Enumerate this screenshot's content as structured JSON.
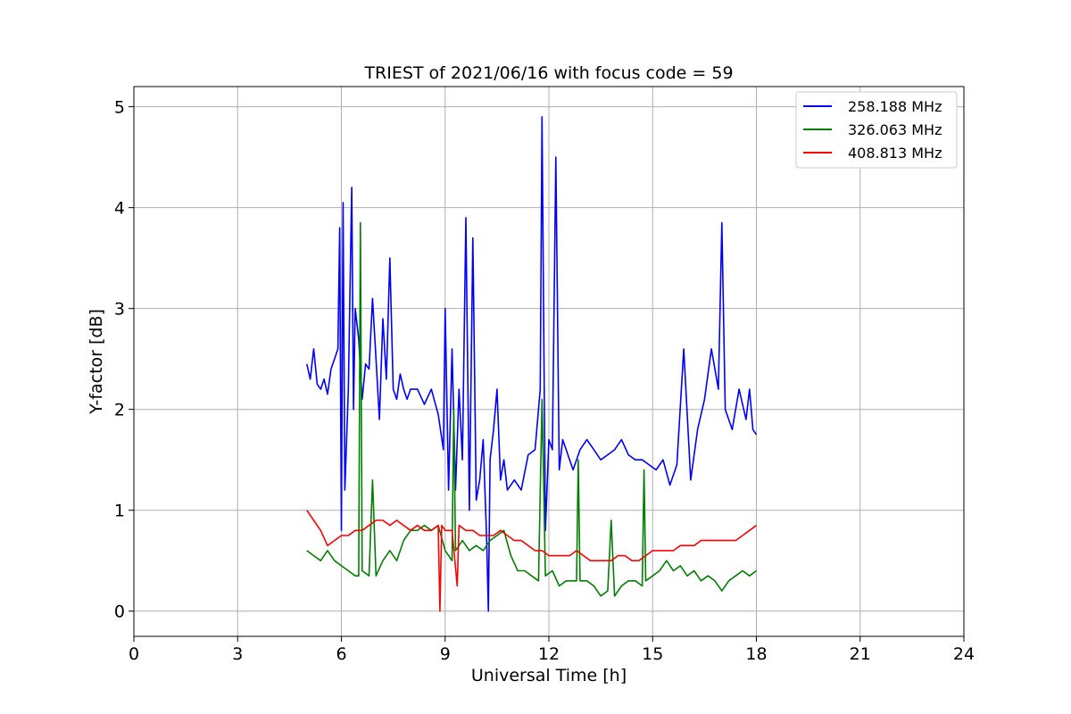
{
  "chart_data": {
    "type": "line",
    "title": "TRIEST of 2021/06/16 with focus code = 59",
    "xlabel": "Universal Time [h]",
    "ylabel": "Y-factor [dB]",
    "xlim": [
      0,
      24
    ],
    "ylim": [
      -0.25,
      5.2
    ],
    "xticks": [
      0,
      3,
      6,
      9,
      12,
      15,
      18,
      21,
      24
    ],
    "yticks": [
      0,
      1,
      2,
      3,
      4,
      5
    ],
    "grid": true,
    "legend_position": "top-right",
    "series": [
      {
        "name": "258.188 MHz",
        "color": "#0000ff",
        "x": [
          5.0,
          5.1,
          5.2,
          5.3,
          5.4,
          5.5,
          5.6,
          5.7,
          5.8,
          5.9,
          5.95,
          6.0,
          6.05,
          6.1,
          6.2,
          6.3,
          6.35,
          6.4,
          6.5,
          6.6,
          6.7,
          6.8,
          6.9,
          7.0,
          7.1,
          7.2,
          7.3,
          7.4,
          7.5,
          7.6,
          7.7,
          7.8,
          7.9,
          8.0,
          8.2,
          8.4,
          8.6,
          8.8,
          8.95,
          9.0,
          9.1,
          9.2,
          9.3,
          9.4,
          9.5,
          9.6,
          9.7,
          9.8,
          9.9,
          10.0,
          10.1,
          10.2,
          10.25,
          10.3,
          10.4,
          10.5,
          10.6,
          10.7,
          10.8,
          11.0,
          11.2,
          11.4,
          11.6,
          11.75,
          11.8,
          11.9,
          12.0,
          12.1,
          12.2,
          12.3,
          12.4,
          12.5,
          12.7,
          12.9,
          13.1,
          13.3,
          13.5,
          13.7,
          13.9,
          14.1,
          14.3,
          14.5,
          14.7,
          14.9,
          15.1,
          15.3,
          15.5,
          15.7,
          15.9,
          16.1,
          16.3,
          16.5,
          16.7,
          16.9,
          17.0,
          17.1,
          17.3,
          17.5,
          17.7,
          17.8,
          17.9,
          18.0
        ],
        "values": [
          2.45,
          2.3,
          2.6,
          2.25,
          2.2,
          2.3,
          2.15,
          2.4,
          2.5,
          2.6,
          3.8,
          0.8,
          4.05,
          1.2,
          2.2,
          4.2,
          2.0,
          3.0,
          2.7,
          2.1,
          2.45,
          2.4,
          3.1,
          2.5,
          1.9,
          2.9,
          2.3,
          3.5,
          2.2,
          2.1,
          2.35,
          2.2,
          2.1,
          2.2,
          2.2,
          2.05,
          2.2,
          1.95,
          1.6,
          3.0,
          1.2,
          2.6,
          1.2,
          2.2,
          1.5,
          3.9,
          1.0,
          3.7,
          1.1,
          1.3,
          1.7,
          0.7,
          0.0,
          1.5,
          1.8,
          2.2,
          1.3,
          1.5,
          1.2,
          1.3,
          1.2,
          1.55,
          1.6,
          2.2,
          4.9,
          0.8,
          1.7,
          1.6,
          4.5,
          1.4,
          1.7,
          1.6,
          1.4,
          1.6,
          1.7,
          1.6,
          1.5,
          1.55,
          1.6,
          1.7,
          1.55,
          1.5,
          1.5,
          1.45,
          1.4,
          1.5,
          1.25,
          1.45,
          2.6,
          1.3,
          1.8,
          2.1,
          2.6,
          2.2,
          3.85,
          2.0,
          1.8,
          2.2,
          1.9,
          2.2,
          1.8,
          1.75
        ]
      },
      {
        "name": "326.063 MHz",
        "color": "#008000",
        "x": [
          5.0,
          5.2,
          5.4,
          5.6,
          5.8,
          6.0,
          6.2,
          6.4,
          6.5,
          6.55,
          6.6,
          6.8,
          6.9,
          7.0,
          7.2,
          7.4,
          7.6,
          7.8,
          8.0,
          8.2,
          8.4,
          8.6,
          8.8,
          9.0,
          9.2,
          9.25,
          9.3,
          9.5,
          9.7,
          9.9,
          10.1,
          10.3,
          10.5,
          10.7,
          10.9,
          11.1,
          11.3,
          11.5,
          11.7,
          11.8,
          11.9,
          12.1,
          12.3,
          12.5,
          12.8,
          12.85,
          12.9,
          13.1,
          13.3,
          13.5,
          13.7,
          13.8,
          13.9,
          14.1,
          14.3,
          14.5,
          14.7,
          14.75,
          14.8,
          15.0,
          15.2,
          15.4,
          15.6,
          15.8,
          16.0,
          16.2,
          16.4,
          16.6,
          16.8,
          17.0,
          17.2,
          17.4,
          17.6,
          17.8,
          18.0
        ],
        "values": [
          0.6,
          0.55,
          0.5,
          0.6,
          0.5,
          0.45,
          0.4,
          0.35,
          0.35,
          3.85,
          0.4,
          0.35,
          1.3,
          0.35,
          0.5,
          0.6,
          0.5,
          0.7,
          0.8,
          0.8,
          0.85,
          0.8,
          0.85,
          0.6,
          0.5,
          2.0,
          0.6,
          0.7,
          0.6,
          0.65,
          0.6,
          0.7,
          0.75,
          0.8,
          0.55,
          0.4,
          0.4,
          0.35,
          0.3,
          2.1,
          0.35,
          0.4,
          0.25,
          0.3,
          0.3,
          1.5,
          0.3,
          0.3,
          0.25,
          0.15,
          0.2,
          0.9,
          0.15,
          0.25,
          0.3,
          0.3,
          0.25,
          1.4,
          0.3,
          0.35,
          0.4,
          0.5,
          0.4,
          0.45,
          0.35,
          0.4,
          0.3,
          0.35,
          0.3,
          0.2,
          0.3,
          0.35,
          0.4,
          0.35,
          0.4
        ]
      },
      {
        "name": "408.813 MHz",
        "color": "#ff0000",
        "x": [
          5.0,
          5.2,
          5.4,
          5.6,
          5.8,
          6.0,
          6.2,
          6.4,
          6.6,
          6.8,
          7.0,
          7.2,
          7.4,
          7.6,
          7.8,
          8.0,
          8.2,
          8.4,
          8.6,
          8.8,
          8.85,
          8.9,
          9.0,
          9.2,
          9.35,
          9.4,
          9.6,
          9.8,
          10.0,
          10.2,
          10.4,
          10.6,
          10.8,
          11.0,
          11.2,
          11.4,
          11.6,
          11.8,
          12.0,
          12.2,
          12.4,
          12.6,
          12.8,
          13.0,
          13.2,
          13.4,
          13.6,
          13.8,
          14.0,
          14.2,
          14.4,
          14.6,
          14.8,
          15.0,
          15.2,
          15.4,
          15.6,
          15.8,
          16.0,
          16.2,
          16.4,
          16.6,
          16.8,
          17.0,
          17.2,
          17.4,
          17.6,
          17.8,
          18.0
        ],
        "values": [
          1.0,
          0.9,
          0.8,
          0.65,
          0.7,
          0.75,
          0.75,
          0.8,
          0.8,
          0.85,
          0.9,
          0.9,
          0.85,
          0.9,
          0.85,
          0.8,
          0.85,
          0.8,
          0.8,
          0.85,
          0.0,
          0.85,
          0.8,
          0.8,
          0.25,
          0.85,
          0.8,
          0.8,
          0.75,
          0.75,
          0.75,
          0.8,
          0.75,
          0.7,
          0.7,
          0.65,
          0.6,
          0.6,
          0.55,
          0.55,
          0.55,
          0.55,
          0.6,
          0.55,
          0.5,
          0.5,
          0.5,
          0.5,
          0.55,
          0.55,
          0.5,
          0.5,
          0.55,
          0.6,
          0.6,
          0.6,
          0.6,
          0.65,
          0.65,
          0.65,
          0.7,
          0.7,
          0.7,
          0.7,
          0.7,
          0.7,
          0.75,
          0.8,
          0.85
        ]
      }
    ]
  }
}
